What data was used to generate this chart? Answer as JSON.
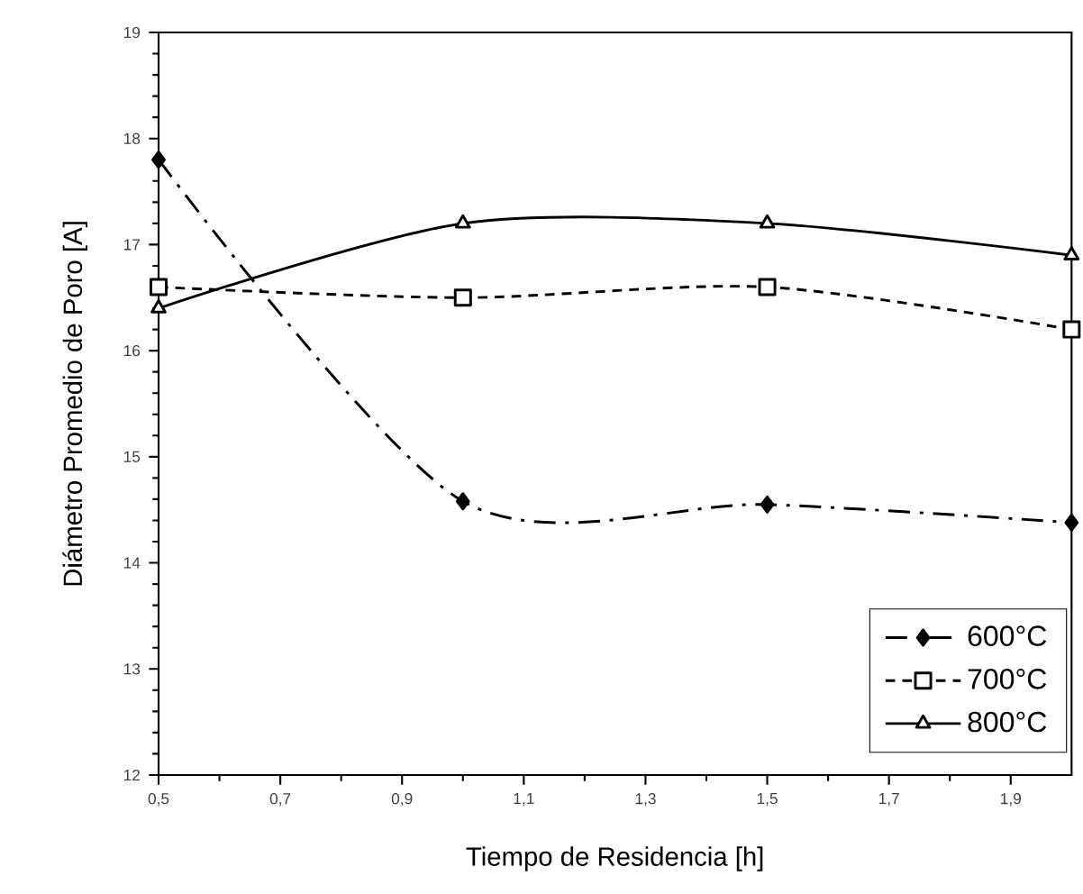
{
  "chart_data": {
    "type": "line",
    "xlabel": "Tiempo de Residencia [h]",
    "ylabel": "Diámetro Promedio de Poro [A]",
    "x": [
      0.5,
      1.0,
      1.5,
      2.0
    ],
    "xlim": [
      0.5,
      2.0
    ],
    "xticks": [
      {
        "value": 0.5,
        "label": "0,5"
      },
      {
        "value": 0.7,
        "label": "0,7"
      },
      {
        "value": 0.9,
        "label": "0,9"
      },
      {
        "value": 1.1,
        "label": "1,1"
      },
      {
        "value": 1.3,
        "label": "1,3"
      },
      {
        "value": 1.5,
        "label": "1,5"
      },
      {
        "value": 1.7,
        "label": "1,7"
      },
      {
        "value": 1.9,
        "label": "1,9"
      }
    ],
    "ylim": [
      12,
      19
    ],
    "yticks": [
      12,
      13,
      14,
      15,
      16,
      17,
      18,
      19
    ],
    "legend": "bottom right",
    "series": [
      {
        "name": "600°C",
        "color": "#000000",
        "marker": "diamond",
        "line_style": "dashdot",
        "values": [
          17.8,
          14.58,
          14.55,
          14.38
        ]
      },
      {
        "name": "700°C",
        "color": "#000000",
        "marker": "square",
        "line_style": "dashed",
        "values": [
          16.6,
          16.5,
          16.6,
          16.2
        ]
      },
      {
        "name": "800°C",
        "color": "#000000",
        "marker": "triangle",
        "line_style": "solid",
        "values": [
          16.4,
          17.2,
          17.2,
          16.9
        ]
      }
    ]
  }
}
